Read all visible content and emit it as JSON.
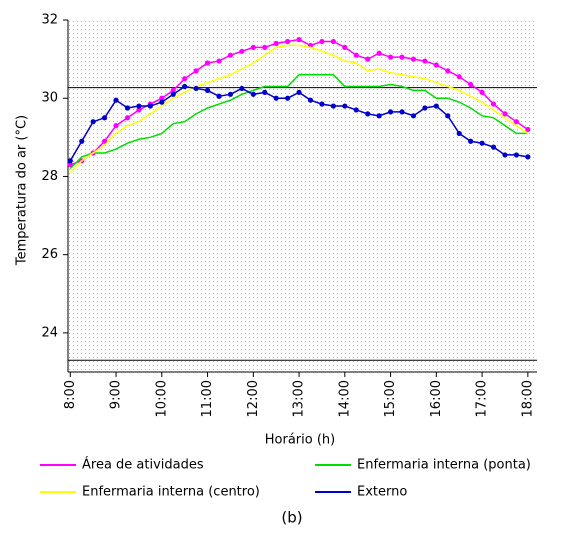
{
  "chart_data": {
    "type": "line",
    "caption": "(b)",
    "xlabel": "Horário (h)",
    "ylabel": "Temperatura do ar (°C)",
    "xlim": [
      7.95,
      18.2
    ],
    "ylim": [
      23,
      32
    ],
    "xticks": [
      {
        "value": 8,
        "label": "8:00"
      },
      {
        "value": 9,
        "label": "9:00"
      },
      {
        "value": 10,
        "label": "10:00"
      },
      {
        "value": 11,
        "label": "11:00"
      },
      {
        "value": 12,
        "label": "12:00"
      },
      {
        "value": 13,
        "label": "13:00"
      },
      {
        "value": 14,
        "label": "14:00"
      },
      {
        "value": 15,
        "label": "15:00"
      },
      {
        "value": 16,
        "label": "16:00"
      },
      {
        "value": 17,
        "label": "17:00"
      },
      {
        "value": 18,
        "label": "18:00"
      }
    ],
    "yticks": [
      24,
      26,
      28,
      30,
      32
    ],
    "reference_lines": [
      30.27,
      23.3
    ],
    "x": [
      8,
      8.25,
      8.5,
      8.75,
      9,
      9.25,
      9.5,
      9.75,
      10,
      10.25,
      10.5,
      10.75,
      11,
      11.25,
      11.5,
      11.75,
      12,
      12.25,
      12.5,
      12.75,
      13,
      13.25,
      13.5,
      13.75,
      14,
      14.25,
      14.5,
      14.75,
      15,
      15.25,
      15.5,
      15.75,
      16,
      16.25,
      16.5,
      16.75,
      17,
      17.25,
      17.5,
      17.75,
      18
    ],
    "series": [
      {
        "name": "Área de atividades",
        "color": "#ff00ff",
        "markers": true,
        "values": [
          28.3,
          28.4,
          28.6,
          28.9,
          29.3,
          29.5,
          29.7,
          29.85,
          30.0,
          30.2,
          30.5,
          30.7,
          30.9,
          30.95,
          31.1,
          31.2,
          31.3,
          31.3,
          31.4,
          31.45,
          31.5,
          31.35,
          31.45,
          31.45,
          31.3,
          31.1,
          31.0,
          31.15,
          31.05,
          31.05,
          31.0,
          30.95,
          30.85,
          30.7,
          30.55,
          30.35,
          30.15,
          29.85,
          29.6,
          29.4,
          29.2
        ]
      },
      {
        "name": "Enfermaria interna (ponta)",
        "color": "#00dd00",
        "markers": false,
        "values": [
          28.2,
          28.5,
          28.6,
          28.6,
          28.7,
          28.85,
          28.95,
          29.0,
          29.1,
          29.35,
          29.4,
          29.6,
          29.75,
          29.85,
          29.95,
          30.1,
          30.2,
          30.3,
          30.3,
          30.3,
          30.6,
          30.6,
          30.6,
          30.6,
          30.3,
          30.3,
          30.3,
          30.3,
          30.35,
          30.3,
          30.2,
          30.2,
          30.0,
          30.0,
          29.9,
          29.75,
          29.55,
          29.5,
          29.3,
          29.1,
          29.1
        ]
      },
      {
        "name": "Enfermaria interna (centro)",
        "color": "#ffff00",
        "markers": false,
        "values": [
          28.1,
          28.4,
          28.6,
          28.8,
          29.1,
          29.3,
          29.4,
          29.6,
          29.8,
          30.0,
          30.15,
          30.3,
          30.4,
          30.5,
          30.6,
          30.75,
          30.9,
          31.1,
          31.3,
          31.35,
          31.35,
          31.3,
          31.2,
          31.1,
          30.95,
          30.9,
          30.7,
          30.75,
          30.65,
          30.6,
          30.55,
          30.5,
          30.4,
          30.3,
          30.2,
          30.05,
          29.9,
          29.7,
          29.5,
          29.3,
          29.1
        ]
      },
      {
        "name": "Externo",
        "color": "#0000cc",
        "markers": true,
        "values": [
          28.4,
          28.9,
          29.4,
          29.5,
          29.95,
          29.75,
          29.8,
          29.8,
          29.9,
          30.1,
          30.3,
          30.25,
          30.2,
          30.05,
          30.1,
          30.25,
          30.1,
          30.15,
          30.0,
          30.0,
          30.15,
          29.95,
          29.85,
          29.8,
          29.8,
          29.7,
          29.6,
          29.55,
          29.65,
          29.65,
          29.55,
          29.75,
          29.8,
          29.55,
          29.1,
          28.9,
          28.85,
          28.75,
          28.55,
          28.55,
          28.5
        ]
      }
    ]
  }
}
